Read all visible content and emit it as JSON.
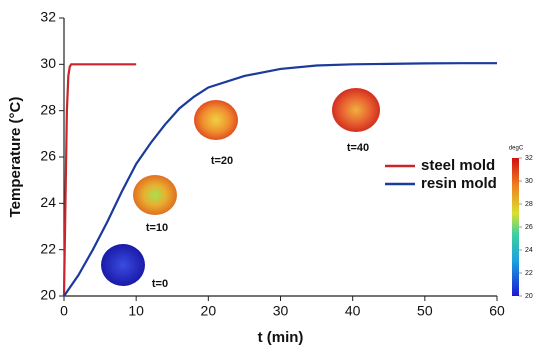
{
  "chart_data": {
    "type": "line",
    "xlabel": "t (min)",
    "ylabel": "Temperature (°C)",
    "xlim": [
      0,
      60
    ],
    "xticks": [
      0,
      10,
      20,
      30,
      40,
      50,
      60
    ],
    "ylim": [
      20,
      32
    ],
    "yticks": [
      20,
      22,
      24,
      26,
      28,
      30,
      32
    ],
    "grid": false,
    "legend": "right",
    "series": [
      {
        "name": "steel mold",
        "color": "#c8262b",
        "x": [
          0,
          0.2,
          0.4,
          0.6,
          0.8,
          1,
          2,
          5,
          10
        ],
        "values": [
          20,
          24,
          28,
          29.5,
          29.9,
          30,
          30,
          30,
          30
        ]
      },
      {
        "name": "resin mold",
        "color": "#1a3a9c",
        "x": [
          0,
          2,
          4,
          6,
          8,
          10,
          12,
          14,
          16,
          18,
          20,
          25,
          30,
          35,
          40,
          45,
          50,
          55,
          60
        ],
        "values": [
          20,
          20.9,
          22,
          23.2,
          24.5,
          25.7,
          26.6,
          27.4,
          28.1,
          28.6,
          29,
          29.5,
          29.8,
          29.95,
          30,
          30.02,
          30.04,
          30.05,
          30.05
        ]
      }
    ],
    "annotations": [
      "t=0",
      "t=10",
      "t=20",
      "t=40"
    ],
    "colorbar": {
      "label": "degC",
      "lim": [
        20,
        32
      ],
      "ticks": [
        20,
        22,
        24,
        26,
        28,
        30,
        32
      ]
    }
  }
}
